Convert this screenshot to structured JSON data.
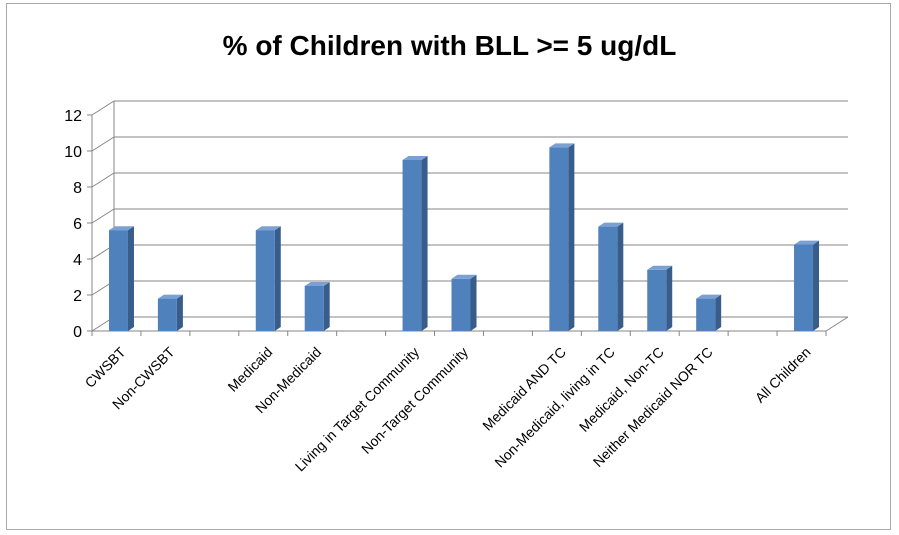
{
  "chart_data": {
    "type": "bar",
    "title": "% of Children with BLL >= 5 ug/dL",
    "categories": [
      "CWSBT",
      "Non-CWSBT",
      "",
      "Medicaid",
      "Non-Medicaid",
      "",
      "Living in Target Community",
      "Non-Target Community",
      "",
      "Medicaid AND TC",
      "Non-Medicaid, living in TC",
      "Medicaid, Non-TC",
      "Neither Medicaid NOR TC",
      "",
      "All Children"
    ],
    "values": [
      5.6,
      1.8,
      null,
      5.6,
      2.5,
      null,
      9.5,
      2.9,
      null,
      10.2,
      5.8,
      3.4,
      1.8,
      null,
      4.8
    ],
    "ylim": [
      0,
      12
    ],
    "yticks": [
      0,
      2,
      4,
      6,
      8,
      10,
      12
    ],
    "ytick_labels": [
      "0",
      "2",
      "4",
      "6",
      "8",
      "10",
      "12"
    ],
    "xlabel": "",
    "ylabel": "",
    "grid": true,
    "style": "3d-column",
    "colors": {
      "bar_front": "#4f81bd",
      "bar_side": "#385d8a",
      "bar_top": "#7aa0d4",
      "grid": "#868686"
    }
  }
}
